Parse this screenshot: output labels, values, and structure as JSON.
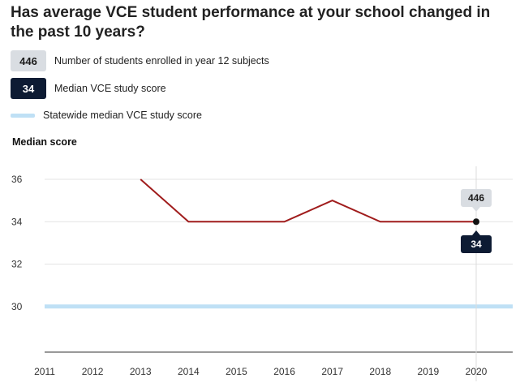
{
  "title": "Has average VCE student performance at your school changed in the past 10 years?",
  "legend": {
    "enrolled": {
      "value": "446",
      "label": "Number of students enrolled in year 12 subjects"
    },
    "median": {
      "value": "34",
      "label": "Median VCE study score"
    },
    "statewide": {
      "label": "Statewide median VCE study score"
    }
  },
  "colors": {
    "school_line": "#a01c1c",
    "statewide_line": "#bfe0f5",
    "badge_dark": "#0d1b33",
    "badge_light": "#d9dde2"
  },
  "tooltip": {
    "year": 2020,
    "enrolled": "446",
    "median": "34"
  },
  "chart_data": {
    "type": "line",
    "ylabel": "Median score",
    "x": [
      2011,
      2012,
      2013,
      2014,
      2015,
      2016,
      2017,
      2018,
      2019,
      2020
    ],
    "xlim": [
      2011,
      2020
    ],
    "ylim": [
      28,
      36
    ],
    "yticks": [
      30,
      32,
      34,
      36
    ],
    "grid": true,
    "series": [
      {
        "name": "Median VCE study score",
        "x": [
          2013,
          2014,
          2015,
          2016,
          2017,
          2018,
          2019,
          2020
        ],
        "values": [
          36,
          34,
          34,
          34,
          35,
          34,
          34,
          34
        ]
      },
      {
        "name": "Statewide median VCE study score",
        "x": [
          2011,
          2020
        ],
        "values": [
          30,
          30
        ]
      }
    ]
  }
}
